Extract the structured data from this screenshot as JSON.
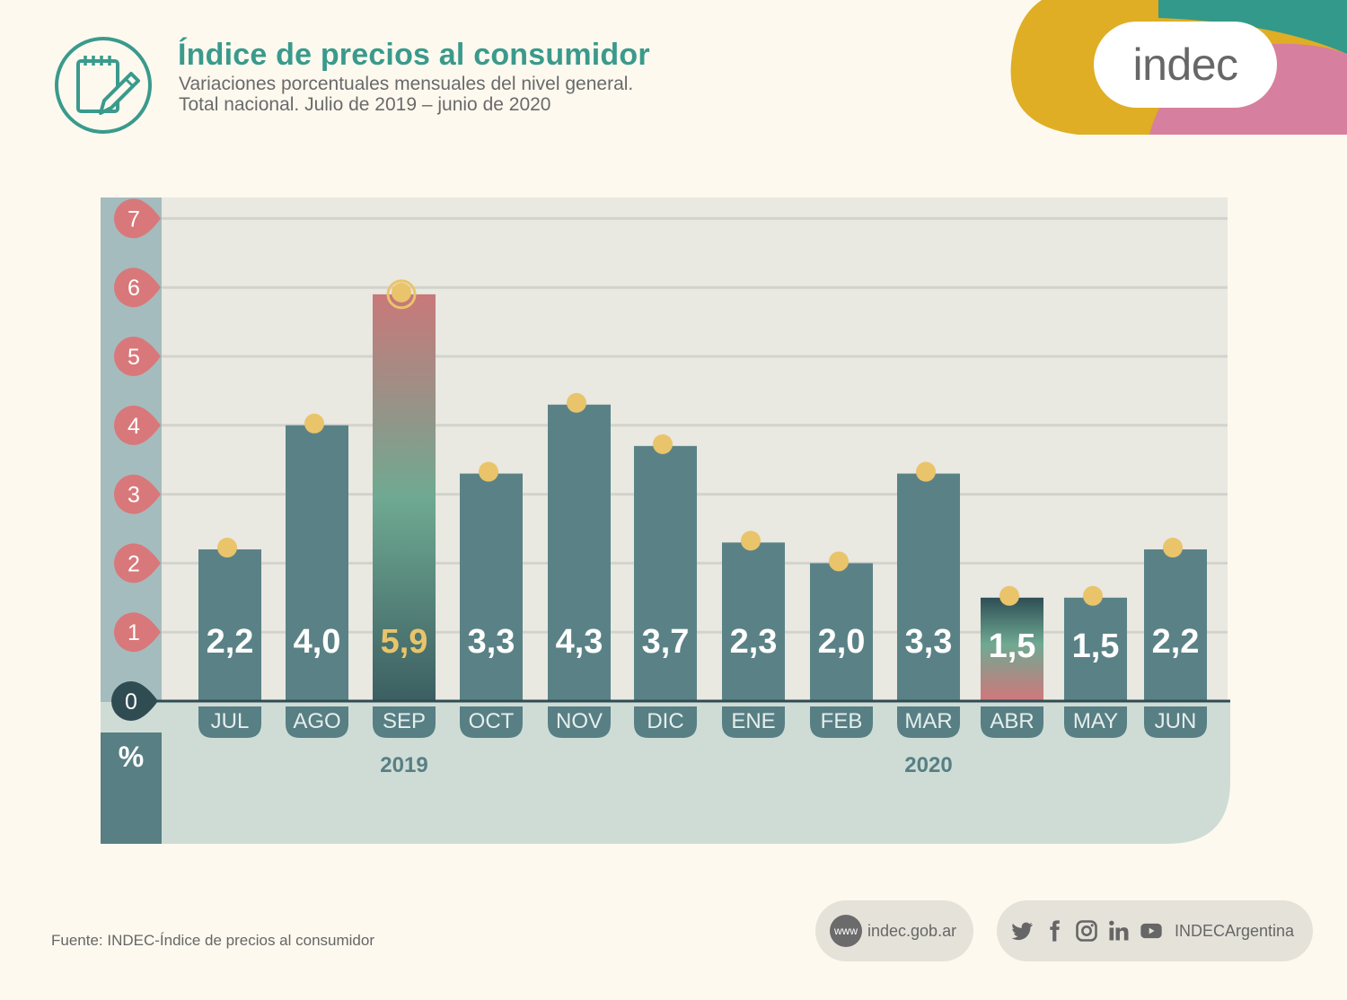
{
  "header": {
    "title": "Índice de precios al consumidor",
    "subtitle_line1": "Variaciones porcentuales mensuales del nivel general.",
    "subtitle_line2": "Total nacional. Julio de 2019 – junio de 2020",
    "icon": "calendar-pencil-icon"
  },
  "brand": {
    "logo_text": "indec"
  },
  "chart_data": {
    "type": "bar",
    "title": "Índice de precios al consumidor",
    "ylabel": "%",
    "ylim": [
      0,
      7
    ],
    "yticks": [
      "0",
      "1",
      "2",
      "3",
      "4",
      "5",
      "6",
      "7"
    ],
    "grid": true,
    "categories": [
      "JUL",
      "AGO",
      "SEP",
      "OCT",
      "NOV",
      "DIC",
      "ENE",
      "FEB",
      "MAR",
      "ABR",
      "MAY",
      "JUN"
    ],
    "values": [
      2.2,
      4.0,
      5.9,
      3.3,
      4.3,
      3.7,
      2.3,
      2.0,
      3.3,
      1.5,
      1.5,
      2.2
    ],
    "value_labels": [
      "2,2",
      "4,0",
      "5,9",
      "3,3",
      "4,3",
      "3,7",
      "2,3",
      "2,0",
      "3,3",
      "1,5",
      "1,5",
      "2,2"
    ],
    "year_labels": [
      {
        "label": "2019",
        "under": "SEP"
      },
      {
        "label": "2020",
        "under": "MAR"
      }
    ],
    "highlight": {
      "max": "SEP",
      "min": "ABR"
    },
    "colors": {
      "bar": "#5a8286",
      "max_top": "#c9787a",
      "max_mid": "#6fa992",
      "max_bottom": "#3c5f62",
      "min_top": "#2e4e55",
      "min_mid": "#6fa992",
      "min_bottom": "#d2777b",
      "dot": "#e9c46a",
      "max_label": "#e9c46a",
      "tick_bubble": "#d9787a"
    }
  },
  "footer": {
    "source": "Fuente: INDEC-Índice de precios al consumidor",
    "web_icon_label": "www",
    "website": "indec.gob.ar",
    "social_handle": "INDECArgentina",
    "social_icons": [
      "twitter-icon",
      "facebook-icon",
      "instagram-icon",
      "linkedin-icon",
      "youtube-icon"
    ]
  }
}
